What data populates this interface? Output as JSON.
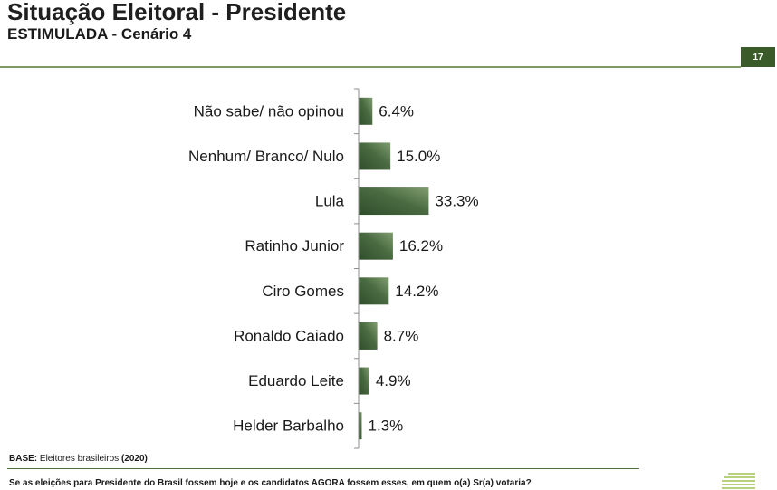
{
  "header": {
    "title": "Situação Eleitoral - Presidente",
    "subtitle": "ESTIMULADA - Cenário 4",
    "page_number": "17"
  },
  "chart_data": {
    "type": "bar",
    "orientation": "horizontal",
    "title": "",
    "xlabel": "",
    "ylabel": "",
    "categories": [
      "Não sabe/ não opinou",
      "Nenhum/ Branco/ Nulo",
      "Lula",
      "Ratinho Junior",
      "Ciro Gomes",
      "Ronaldo Caiado",
      "Eduardo Leite",
      "Helder Barbalho"
    ],
    "values": [
      6.4,
      15.0,
      33.3,
      16.2,
      14.2,
      8.7,
      4.9,
      1.3
    ],
    "value_labels": [
      "6.4%",
      "15.0%",
      "33.3%",
      "16.2%",
      "14.2%",
      "8.7%",
      "4.9%",
      "1.3%"
    ],
    "xlim": [
      0,
      100
    ],
    "grid": false,
    "legend": "none"
  },
  "footer": {
    "base_label": "BASE:",
    "base_text": "Eleitores brasileiros",
    "base_year": "(2020)",
    "question": "Se as eleições para Presidente do Brasil fossem hoje e os candidatos AGORA fossem esses, em quem o(a) Sr(a) votaria?"
  },
  "colors": {
    "text": "#1a1a1a",
    "accent": "#3b5a2a",
    "rule": "#7f9a65",
    "footer_rule": "#4d6b3c",
    "bar_dark": "#2f4d2b",
    "bar_mid": "#4a6b42",
    "bar_light": "#809d6f",
    "axis": "#8c8c8c",
    "logo": "#b7d17c"
  },
  "icons": {
    "logo": "green-stripes-logo"
  }
}
